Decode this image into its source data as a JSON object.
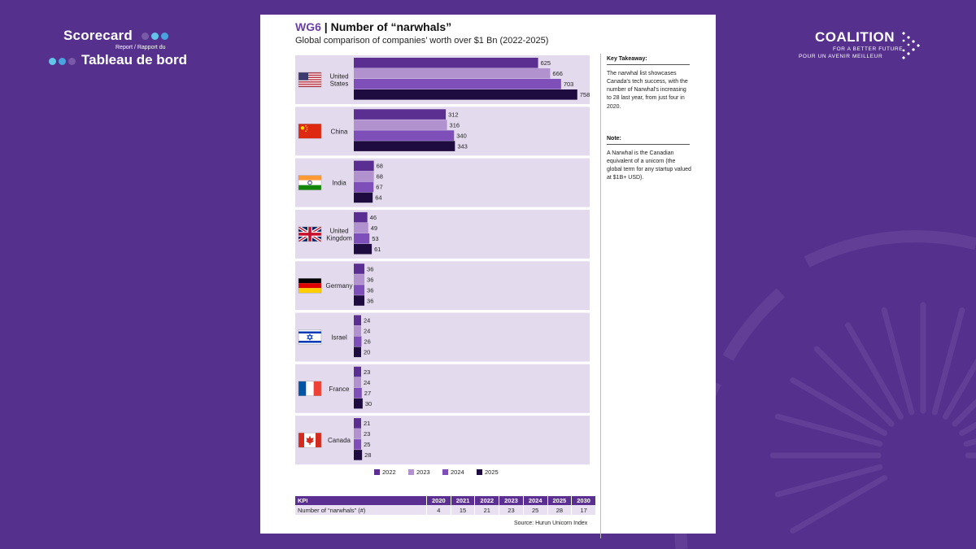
{
  "brand_left": {
    "line1": "Scorecard",
    "line2": "Report / Rapport du",
    "line3": "Tableau de bord"
  },
  "brand_right": {
    "name": "COALITION",
    "tagline1": "FOR A BETTER FUTURE",
    "tagline2": "POUR UN AVENIR MEILLEUR"
  },
  "header": {
    "code": "WG6",
    "separator": " | ",
    "title": "Number of “narwhals”",
    "subtitle": "Global comparison of companies’ worth over $1 Bn (2022-2025)"
  },
  "sidebar": {
    "takeaway_title": "Key Takeaway:",
    "takeaway_text": "The narwhal list showcases Canada's tech success, with the number of Narwhal's increasing to 28 last year, from just four in 2020.",
    "note_title": "Note:",
    "note_text": "A Narwhal is the Canadian equivalent of a unicorn (the global term for any startup valued at $1B+ USD)."
  },
  "chart_data": {
    "type": "bar",
    "orientation": "horizontal",
    "title": "Number of “narwhals”",
    "subtitle": "Global comparison of companies’ worth over $1 Bn (2022-2025)",
    "categories": [
      "United States",
      "China",
      "India",
      "United Kingdom",
      "Germany",
      "Israel",
      "France",
      "Canada"
    ],
    "category_flags": [
      "us-flag",
      "cn-flag",
      "in-flag",
      "uk-flag",
      "de-flag",
      "il-flag",
      "fr-flag",
      "ca-flag"
    ],
    "series": [
      {
        "name": "2022",
        "color": "#5b2e91",
        "values": [
          625,
          312,
          68,
          46,
          36,
          24,
          23,
          21
        ]
      },
      {
        "name": "2023",
        "color": "#b291cf",
        "values": [
          666,
          316,
          68,
          49,
          36,
          24,
          24,
          23
        ]
      },
      {
        "name": "2024",
        "color": "#7e4fb8",
        "values": [
          703,
          340,
          67,
          53,
          36,
          26,
          27,
          25
        ]
      },
      {
        "name": "2025",
        "color": "#1e0b3f",
        "values": [
          758,
          343,
          64,
          61,
          36,
          20,
          30,
          28
        ]
      }
    ],
    "legend_position": "bottom",
    "grid": false,
    "xlim": [
      0,
      800
    ]
  },
  "kpi_table": {
    "headers": [
      "KPI",
      "2020",
      "2021",
      "2022",
      "2023",
      "2024",
      "2025",
      "2030"
    ],
    "row": [
      "Number of “narwhals” (#)",
      "4",
      "15",
      "21",
      "23",
      "25",
      "28",
      "17"
    ]
  },
  "source": "Source: Hurun Unicorn Index",
  "colors": {
    "background": "#55308d",
    "accent": "#5b2e91",
    "band": "#e4daee"
  }
}
